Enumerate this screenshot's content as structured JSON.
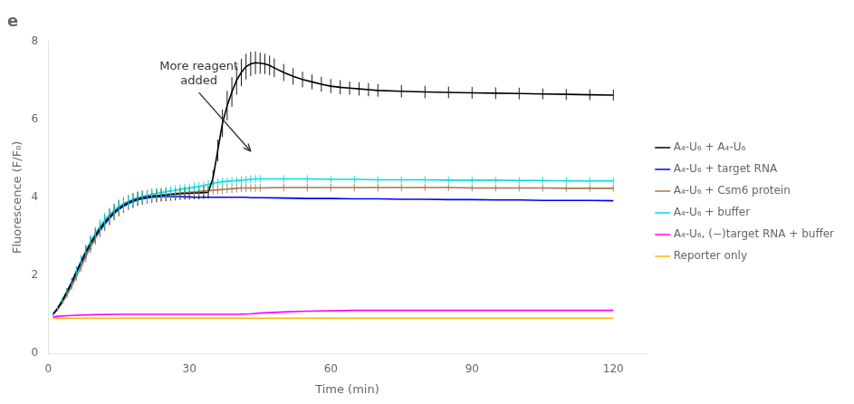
{
  "chart_data": {
    "type": "line",
    "title": "e",
    "x_label": "Time (min)",
    "y_label": "Fluorescence (F/F₀)",
    "xlim": [
      0,
      127
    ],
    "ylim": [
      0,
      8
    ],
    "xticks": [
      0,
      30,
      60,
      90,
      120
    ],
    "yticks": [
      0,
      2,
      4,
      6,
      8
    ],
    "grid": false,
    "legend": "right",
    "annotation": {
      "text": "More reagent\nadded",
      "x": 43,
      "y": 5.18,
      "text_x": 32,
      "text_y": 7.5
    },
    "series": [
      {
        "name": "A₄-U₆ + A₄-U₆",
        "color": "#000000",
        "x": [
          1,
          2,
          3,
          4,
          5,
          6,
          7,
          8,
          9,
          10,
          11,
          12,
          13,
          14,
          15,
          16,
          17,
          18,
          19,
          20,
          21,
          22,
          23,
          24,
          25,
          26,
          27,
          28,
          29,
          30,
          31,
          32,
          33,
          34,
          35,
          36,
          37,
          38,
          39,
          40,
          41,
          42,
          43,
          44,
          45,
          46,
          47,
          48,
          50,
          52,
          54,
          56,
          58,
          60,
          62,
          64,
          66,
          68,
          70,
          75,
          80,
          85,
          90,
          95,
          100,
          105,
          110,
          115,
          120
        ],
        "values": [
          1.0,
          1.15,
          1.35,
          1.58,
          1.82,
          2.1,
          2.35,
          2.6,
          2.82,
          3.02,
          3.2,
          3.36,
          3.5,
          3.62,
          3.72,
          3.8,
          3.87,
          3.92,
          3.96,
          3.99,
          4.01,
          4.03,
          4.04,
          4.05,
          4.06,
          4.07,
          4.08,
          4.09,
          4.1,
          4.1,
          4.11,
          4.11,
          4.12,
          4.13,
          4.5,
          5.2,
          5.9,
          6.35,
          6.7,
          7.0,
          7.2,
          7.35,
          7.42,
          7.45,
          7.44,
          7.42,
          7.38,
          7.32,
          7.2,
          7.1,
          7.02,
          6.96,
          6.9,
          6.85,
          6.82,
          6.8,
          6.78,
          6.76,
          6.74,
          6.72,
          6.7,
          6.69,
          6.68,
          6.67,
          6.66,
          6.65,
          6.64,
          6.63,
          6.62
        ],
        "yerr": [
          0.04,
          0.05,
          0.07,
          0.09,
          0.11,
          0.13,
          0.15,
          0.17,
          0.18,
          0.19,
          0.2,
          0.2,
          0.2,
          0.2,
          0.2,
          0.2,
          0.19,
          0.19,
          0.18,
          0.18,
          0.17,
          0.17,
          0.17,
          0.16,
          0.16,
          0.16,
          0.16,
          0.16,
          0.16,
          0.16,
          0.16,
          0.16,
          0.16,
          0.16,
          0.2,
          0.28,
          0.35,
          0.38,
          0.38,
          0.37,
          0.35,
          0.33,
          0.31,
          0.29,
          0.27,
          0.26,
          0.25,
          0.24,
          0.22,
          0.21,
          0.2,
          0.19,
          0.19,
          0.18,
          0.18,
          0.17,
          0.17,
          0.17,
          0.16,
          0.16,
          0.16,
          0.15,
          0.15,
          0.15,
          0.15,
          0.14,
          0.14,
          0.14,
          0.14
        ]
      },
      {
        "name": "A₄-U₆ + target RNA",
        "color": "#0000FF",
        "x": [
          1,
          2,
          3,
          4,
          5,
          6,
          7,
          8,
          9,
          10,
          11,
          12,
          13,
          14,
          15,
          16,
          17,
          18,
          19,
          20,
          21,
          22,
          23,
          24,
          25,
          26,
          27,
          28,
          29,
          30,
          31,
          32,
          33,
          34,
          35,
          36,
          37,
          38,
          39,
          40,
          41,
          42,
          43,
          44,
          45,
          50,
          55,
          60,
          65,
          70,
          75,
          80,
          85,
          90,
          95,
          100,
          105,
          110,
          115,
          120
        ],
        "values": [
          1.0,
          1.15,
          1.35,
          1.57,
          1.8,
          2.07,
          2.32,
          2.57,
          2.8,
          3.0,
          3.17,
          3.33,
          3.47,
          3.59,
          3.69,
          3.77,
          3.84,
          3.89,
          3.93,
          3.96,
          3.98,
          4.0,
          4.01,
          4.02,
          4.02,
          4.02,
          4.02,
          4.02,
          4.01,
          4.01,
          4.0,
          4.0,
          4.0,
          4.0,
          4.0,
          4.0,
          4.0,
          4.0,
          4.0,
          4.0,
          4.0,
          4.0,
          3.99,
          3.99,
          3.99,
          3.98,
          3.97,
          3.97,
          3.96,
          3.96,
          3.95,
          3.95,
          3.94,
          3.94,
          3.93,
          3.93,
          3.92,
          3.92,
          3.92,
          3.91
        ]
      },
      {
        "name": "A₄-U₆ + Csm6 protein",
        "color": "#A07850",
        "x": [
          1,
          2,
          3,
          4,
          5,
          6,
          7,
          8,
          9,
          10,
          11,
          12,
          13,
          14,
          15,
          16,
          17,
          18,
          19,
          20,
          21,
          22,
          23,
          24,
          25,
          26,
          27,
          28,
          29,
          30,
          31,
          32,
          33,
          34,
          35,
          36,
          37,
          38,
          39,
          40,
          41,
          42,
          43,
          44,
          45,
          50,
          55,
          60,
          65,
          70,
          75,
          80,
          85,
          90,
          95,
          100,
          105,
          110,
          115,
          120
        ],
        "values": [
          1.0,
          1.13,
          1.3,
          1.5,
          1.72,
          1.97,
          2.22,
          2.48,
          2.72,
          2.94,
          3.13,
          3.3,
          3.45,
          3.58,
          3.69,
          3.78,
          3.85,
          3.9,
          3.95,
          3.98,
          4.0,
          4.02,
          4.04,
          4.06,
          4.07,
          4.09,
          4.1,
          4.11,
          4.12,
          4.13,
          4.14,
          4.15,
          4.16,
          4.17,
          4.18,
          4.19,
          4.2,
          4.21,
          4.22,
          4.23,
          4.24,
          4.24,
          4.24,
          4.24,
          4.24,
          4.25,
          4.25,
          4.25,
          4.25,
          4.25,
          4.25,
          4.25,
          4.25,
          4.24,
          4.24,
          4.24,
          4.24,
          4.23,
          4.23,
          4.23
        ],
        "yerr": [
          0.04,
          0.05,
          0.06,
          0.08,
          0.1,
          0.11,
          0.13,
          0.14,
          0.15,
          0.16,
          0.16,
          0.17,
          0.17,
          0.17,
          0.17,
          0.17,
          0.17,
          0.17,
          0.16,
          0.16,
          0.16,
          0.15,
          0.15,
          0.15,
          0.14,
          0.14,
          0.14,
          0.13,
          0.13,
          0.13,
          0.13,
          0.12,
          0.12,
          0.12,
          0.12,
          0.11,
          0.11,
          0.11,
          0.11,
          0.11,
          0.1,
          0.1,
          0.1,
          0.1,
          0.1,
          0.1,
          0.1,
          0.1,
          0.1,
          0.1,
          0.1,
          0.09,
          0.09,
          0.09,
          0.09,
          0.09,
          0.09,
          0.09,
          0.09,
          0.09
        ]
      },
      {
        "name": "A₄-U₆ + buffer",
        "color": "#00DDDD",
        "x": [
          1,
          2,
          3,
          4,
          5,
          6,
          7,
          8,
          9,
          10,
          11,
          12,
          13,
          14,
          15,
          16,
          17,
          18,
          19,
          20,
          21,
          22,
          23,
          24,
          25,
          26,
          27,
          28,
          29,
          30,
          31,
          32,
          33,
          34,
          35,
          36,
          37,
          38,
          39,
          40,
          41,
          42,
          43,
          44,
          45,
          50,
          55,
          60,
          65,
          70,
          75,
          80,
          85,
          90,
          95,
          100,
          105,
          110,
          115,
          120
        ],
        "values": [
          1.0,
          1.15,
          1.36,
          1.59,
          1.83,
          2.1,
          2.37,
          2.63,
          2.86,
          3.07,
          3.26,
          3.42,
          3.56,
          3.67,
          3.77,
          3.84,
          3.9,
          3.95,
          3.99,
          4.02,
          4.05,
          4.08,
          4.1,
          4.12,
          4.14,
          4.16,
          4.18,
          4.2,
          4.22,
          4.24,
          4.26,
          4.28,
          4.3,
          4.33,
          4.36,
          4.38,
          4.4,
          4.41,
          4.42,
          4.43,
          4.44,
          4.45,
          4.46,
          4.47,
          4.47,
          4.47,
          4.47,
          4.46,
          4.46,
          4.45,
          4.45,
          4.45,
          4.44,
          4.44,
          4.44,
          4.43,
          4.43,
          4.42,
          4.42,
          4.42
        ],
        "yerr": [
          0.04,
          0.05,
          0.07,
          0.09,
          0.11,
          0.13,
          0.15,
          0.16,
          0.17,
          0.18,
          0.18,
          0.18,
          0.18,
          0.18,
          0.17,
          0.17,
          0.17,
          0.16,
          0.16,
          0.15,
          0.15,
          0.15,
          0.14,
          0.14,
          0.14,
          0.13,
          0.13,
          0.13,
          0.12,
          0.12,
          0.12,
          0.11,
          0.11,
          0.11,
          0.11,
          0.1,
          0.1,
          0.1,
          0.1,
          0.1,
          0.1,
          0.1,
          0.1,
          0.1,
          0.1,
          0.1,
          0.1,
          0.09,
          0.09,
          0.09,
          0.09,
          0.09,
          0.09,
          0.09,
          0.09,
          0.09,
          0.09,
          0.09,
          0.09,
          0.09
        ]
      },
      {
        "name": "A₄-U₆, (−)target RNA + buffer",
        "color": "#FF00FF",
        "x": [
          1,
          2,
          5,
          10,
          15,
          20,
          25,
          30,
          35,
          40,
          43,
          45,
          50,
          55,
          60,
          65,
          70,
          75,
          80,
          85,
          90,
          95,
          100,
          105,
          110,
          115,
          120
        ],
        "values": [
          0.93,
          0.95,
          0.97,
          0.99,
          1.0,
          1.0,
          1.0,
          1.0,
          1.0,
          1.0,
          1.01,
          1.03,
          1.06,
          1.08,
          1.09,
          1.1,
          1.1,
          1.1,
          1.1,
          1.1,
          1.1,
          1.1,
          1.1,
          1.1,
          1.1,
          1.1,
          1.1
        ]
      },
      {
        "name": "Reporter only",
        "color": "#FFB800",
        "x": [
          1,
          2,
          5,
          10,
          15,
          20,
          25,
          30,
          35,
          40,
          43,
          45,
          50,
          55,
          60,
          65,
          70,
          75,
          80,
          85,
          90,
          95,
          100,
          105,
          110,
          115,
          120
        ],
        "values": [
          0.9,
          0.9,
          0.9,
          0.9,
          0.9,
          0.9,
          0.9,
          0.9,
          0.9,
          0.9,
          0.9,
          0.9,
          0.9,
          0.9,
          0.9,
          0.9,
          0.9,
          0.9,
          0.9,
          0.9,
          0.9,
          0.9,
          0.9,
          0.9,
          0.9,
          0.9,
          0.9
        ]
      }
    ]
  }
}
